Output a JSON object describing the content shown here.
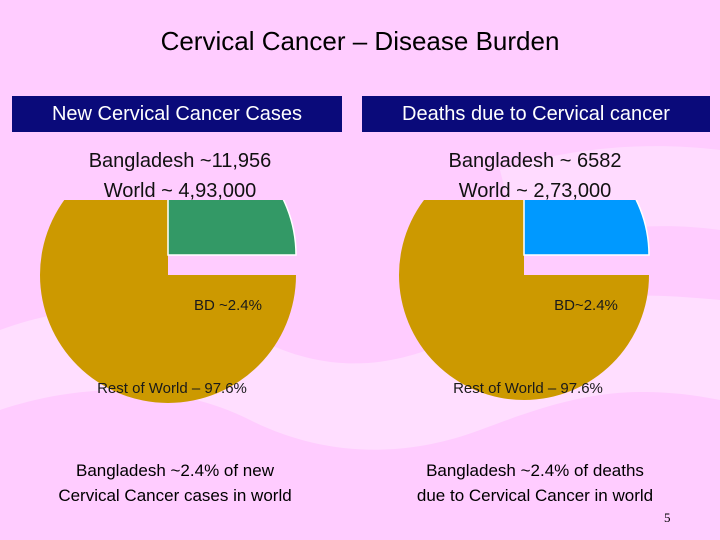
{
  "slide": {
    "title": "Cervical Cancer – Disease Burden",
    "page_number": "5"
  },
  "panels": [
    {
      "header": "New Cervical Cancer Cases",
      "stat_lines": [
        "Bangladesh ~11,956",
        "World ~ 4,93,000"
      ],
      "caption_lines": [
        "Bangladesh ~2.4% of new",
        "Cervical Cancer cases in world"
      ]
    },
    {
      "header": "Deaths due to Cervical cancer",
      "stat_lines": [
        "Bangladesh ~ 6582",
        "World ~ 2,73,000"
      ],
      "caption_lines": [
        "Bangladesh ~2.4% of deaths",
        "due to Cervical Cancer in world"
      ]
    }
  ],
  "chart_data": [
    {
      "type": "pie",
      "slices": [
        {
          "label": "BD ~2.4%",
          "value": 2.4,
          "color": "#339966",
          "exploded": true
        },
        {
          "label": "Rest of World – 97.6%",
          "value": 97.6,
          "color": "#cc9900",
          "exploded": false
        }
      ]
    },
    {
      "type": "pie",
      "slices": [
        {
          "label": "BD~2.4%",
          "value": 2.4,
          "color": "#0099ff",
          "exploded": true
        },
        {
          "label": "Rest of World – 97.6%",
          "value": 97.6,
          "color": "#cc9900",
          "exploded": false
        }
      ]
    }
  ],
  "colors": {
    "background": "#ffccff",
    "header_bg": "#0a0a7a",
    "header_text": "#ffffff"
  }
}
